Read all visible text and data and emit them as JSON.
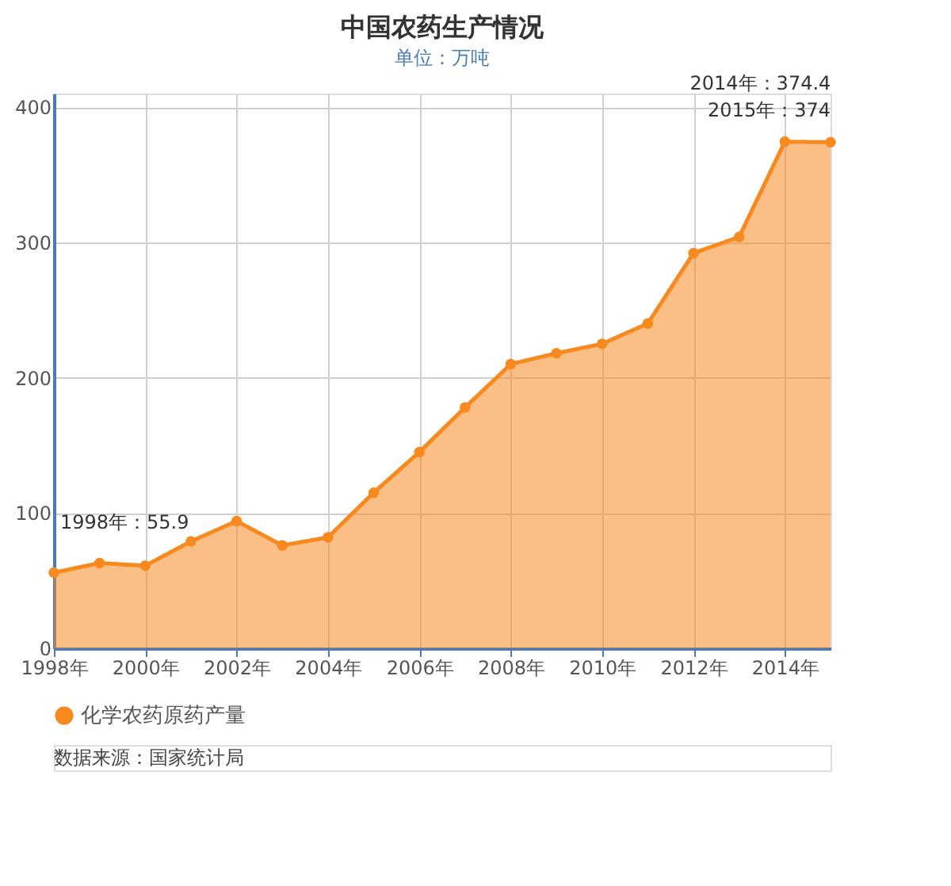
{
  "chart_data": {
    "type": "area",
    "title": "中国农药生产情况",
    "subtitle": "单位：万吨",
    "x": [
      1998,
      1999,
      2000,
      2001,
      2002,
      2003,
      2004,
      2005,
      2006,
      2007,
      2008,
      2009,
      2010,
      2011,
      2012,
      2013,
      2014,
      2015
    ],
    "series": [
      {
        "name": "化学农药原药产量",
        "color": "#f7891f",
        "values": [
          55.9,
          63,
          61,
          79,
          94,
          76,
          82,
          115,
          145,
          178,
          210,
          218,
          225,
          240,
          292,
          304,
          374.4,
          374
        ]
      }
    ],
    "xlim": [
      1998,
      2015
    ],
    "xticks": [
      {
        "value": 1998,
        "label": "1998年"
      },
      {
        "value": 2000,
        "label": "2000年"
      },
      {
        "value": 2002,
        "label": "2002年"
      },
      {
        "value": 2004,
        "label": "2004年"
      },
      {
        "value": 2006,
        "label": "2006年"
      },
      {
        "value": 2008,
        "label": "2008年"
      },
      {
        "value": 2010,
        "label": "2010年"
      },
      {
        "value": 2012,
        "label": "2012年"
      },
      {
        "value": 2014,
        "label": "2014年"
      }
    ],
    "ylim": [
      0,
      410
    ],
    "yticks": [
      0,
      100,
      200,
      300,
      400
    ],
    "grid": true,
    "legend": "bottom",
    "marker": "circle",
    "line_style": "solid",
    "annotations": [
      {
        "text": "1998年：55.9",
        "x": 1998,
        "y": 55.9
      },
      {
        "text": "2014年：374.4",
        "x": 2014,
        "y": 374.4
      },
      {
        "text": "2015年：374",
        "x": 2015,
        "y": 374
      },
      "数据来源：国家统计局"
    ]
  }
}
